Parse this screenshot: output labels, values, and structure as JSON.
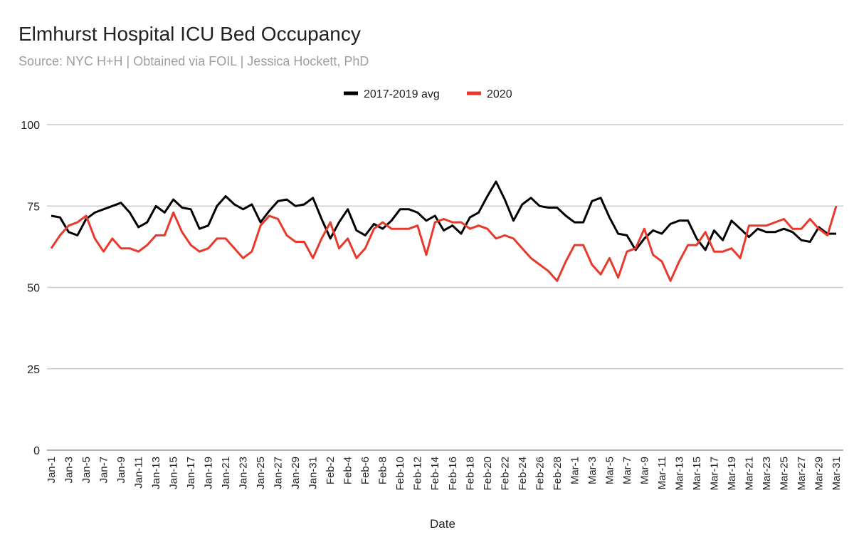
{
  "chart_data": {
    "type": "line",
    "title": "Elmhurst Hospital ICU Bed Occupancy",
    "subtitle": "Source: NYC H+H | Obtained via FOIL | Jessica Hockett, PhD",
    "xlabel": "Date",
    "ylabel": "",
    "ylim": [
      0,
      100
    ],
    "yticks": [
      0,
      25,
      50,
      75,
      100
    ],
    "grid": true,
    "legend_position": "top",
    "categories": [
      "Jan-1",
      "Jan-2",
      "Jan-3",
      "Jan-4",
      "Jan-5",
      "Jan-6",
      "Jan-7",
      "Jan-8",
      "Jan-9",
      "Jan-10",
      "Jan-11",
      "Jan-12",
      "Jan-13",
      "Jan-14",
      "Jan-15",
      "Jan-16",
      "Jan-17",
      "Jan-18",
      "Jan-19",
      "Jan-20",
      "Jan-21",
      "Jan-22",
      "Jan-23",
      "Jan-24",
      "Jan-25",
      "Jan-26",
      "Jan-27",
      "Jan-28",
      "Jan-29",
      "Jan-30",
      "Jan-31",
      "Feb-1",
      "Feb-2",
      "Feb-3",
      "Feb-4",
      "Feb-5",
      "Feb-6",
      "Feb-7",
      "Feb-8",
      "Feb-9",
      "Feb-10",
      "Feb-11",
      "Feb-12",
      "Feb-13",
      "Feb-14",
      "Feb-15",
      "Feb-16",
      "Feb-17",
      "Feb-18",
      "Feb-19",
      "Feb-20",
      "Feb-21",
      "Feb-22",
      "Feb-23",
      "Feb-24",
      "Feb-25",
      "Feb-26",
      "Feb-27",
      "Feb-28",
      "Feb-29",
      "Mar-1",
      "Mar-2",
      "Mar-3",
      "Mar-4",
      "Mar-5",
      "Mar-6",
      "Mar-7",
      "Mar-8",
      "Mar-9",
      "Mar-10",
      "Mar-11",
      "Mar-12",
      "Mar-13",
      "Mar-14",
      "Mar-15",
      "Mar-16",
      "Mar-17",
      "Mar-18",
      "Mar-19",
      "Mar-20",
      "Mar-21",
      "Mar-22",
      "Mar-23",
      "Mar-24",
      "Mar-25",
      "Mar-26",
      "Mar-27",
      "Mar-28",
      "Mar-29",
      "Mar-30",
      "Mar-31"
    ],
    "series": [
      {
        "name": "2017-2019 avg",
        "color": "#000000",
        "values": [
          72,
          71.5,
          67,
          66,
          71,
          73,
          74,
          75,
          76,
          73,
          68.5,
          70,
          75,
          73,
          77,
          74.5,
          74,
          68,
          69,
          75,
          78,
          75.5,
          74,
          75.5,
          70,
          73.5,
          76.5,
          77,
          75,
          75.5,
          77.5,
          71,
          65,
          70,
          74,
          67.5,
          66,
          69.5,
          68,
          70.5,
          74,
          74,
          73,
          70.5,
          72,
          67.5,
          69,
          66.5,
          71.5,
          73,
          78,
          82.5,
          77,
          70.5,
          75.5,
          77.5,
          75,
          74.5,
          74.5,
          72,
          70,
          70,
          76.5,
          77.5,
          71.5,
          66.5,
          66,
          61.5,
          65,
          67.5,
          66.5,
          69.5,
          70.5,
          70.5,
          65,
          61.5,
          67.5,
          64.5,
          70.5,
          68,
          65.5,
          68,
          67,
          67,
          68,
          67,
          64.5,
          64,
          68.5,
          66.5,
          66.5
        ]
      },
      {
        "name": "2020",
        "color": "#e8392c",
        "values": [
          62,
          66,
          69,
          70,
          72,
          65,
          61,
          65,
          62,
          62,
          61,
          63,
          66,
          66,
          73,
          67,
          63,
          61,
          62,
          65,
          65,
          62,
          59,
          61,
          69,
          72,
          71,
          66,
          64,
          64,
          59,
          65,
          70,
          62,
          65,
          59,
          62,
          68,
          70,
          68,
          68,
          68,
          69,
          60,
          70,
          71,
          70,
          70,
          68,
          69,
          68,
          65,
          66,
          65,
          62,
          59,
          57,
          55,
          52,
          58,
          63,
          63,
          57,
          54,
          59,
          53,
          61,
          62,
          68,
          60,
          58,
          52,
          58,
          63,
          63,
          67,
          61,
          61,
          62,
          59,
          69,
          69,
          69,
          70,
          71,
          68,
          68,
          71,
          68,
          66,
          75
        ]
      }
    ]
  }
}
